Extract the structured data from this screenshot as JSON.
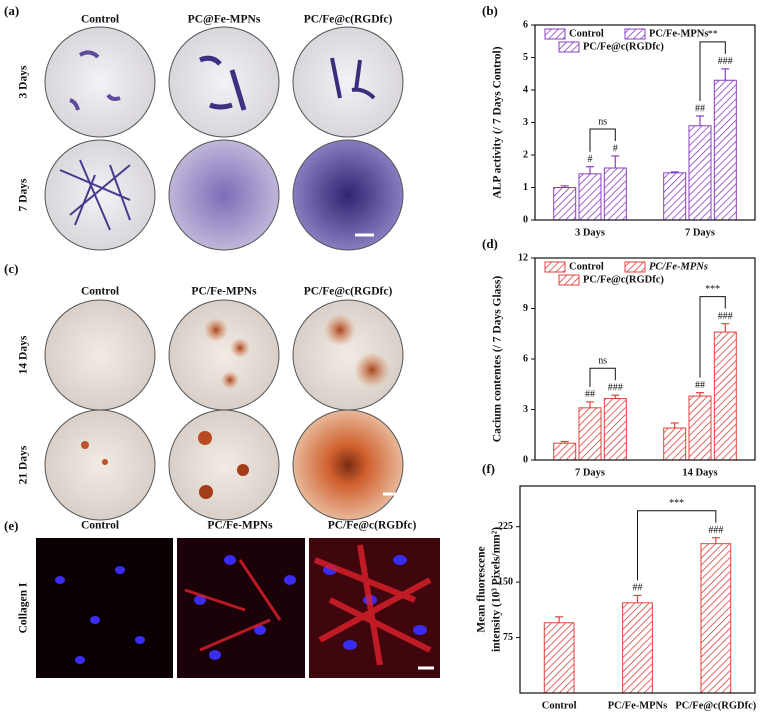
{
  "panels": {
    "a": {
      "label": "(a)",
      "columns": [
        "Control",
        "PC@Fe-MPNs",
        "PC/Fe@c(RGDfc)"
      ],
      "rows": [
        "3 Days",
        "7 Days"
      ]
    },
    "c": {
      "label": "(c)",
      "columns": [
        "Control",
        "PC/Fe-MPNs",
        "PC/Fe@c(RGDfc)"
      ],
      "rows": [
        "14 Days",
        "21 Days"
      ]
    },
    "e": {
      "label": "(e)",
      "columns": [
        "Control",
        "PC/Fe-MPNs",
        "PC/Fe@c(RGDfc)"
      ],
      "rows": [
        "Collagen I"
      ]
    }
  },
  "chart_data": [
    {
      "type": "bar",
      "panel_label": "(b)",
      "ylabel": "ALP activity (/ 7 Days Control)",
      "categories": [
        "3 Days",
        "7 Days"
      ],
      "color": "#8a3fc4",
      "legend": "top-left",
      "series": [
        {
          "name": "Control",
          "values": [
            1.0,
            1.45
          ],
          "errors": [
            0.05,
            0.03
          ]
        },
        {
          "name": "PC/Fe-MPNs",
          "values": [
            1.42,
            2.9
          ],
          "errors": [
            0.22,
            0.3
          ],
          "significance": [
            "#",
            "##"
          ]
        },
        {
          "name": "PC/Fe@c(RGDfc)",
          "values": [
            1.6,
            4.3
          ],
          "errors": [
            0.37,
            0.35
          ],
          "significance": [
            "#",
            "###"
          ]
        }
      ],
      "brackets": [
        {
          "label": "ns",
          "category": "3 Days",
          "between": [
            "PC/Fe-MPNs",
            "PC/Fe@c(RGDfc)"
          ]
        },
        {
          "label": "**",
          "category": "7 Days",
          "between": [
            "PC/Fe-MPNs",
            "PC/Fe@c(RGDfc)"
          ]
        }
      ],
      "ylim": [
        0,
        6
      ],
      "yticks": [
        0,
        1,
        2,
        3,
        4,
        5,
        6
      ]
    },
    {
      "type": "bar",
      "panel_label": "(d)",
      "ylabel": "Cacium contentes (/ 7 Days Glass)",
      "categories": [
        "7 Days",
        "14 Days"
      ],
      "color": "#e2423c",
      "legend": "top-left",
      "series": [
        {
          "name": "Control",
          "values": [
            1.0,
            1.9
          ],
          "errors": [
            0.1,
            0.3
          ]
        },
        {
          "name": "PC/Fe-MPNs",
          "values": [
            3.1,
            3.8
          ],
          "errors": [
            0.35,
            0.2
          ],
          "significance": [
            "##",
            "##"
          ],
          "legend_italic": true
        },
        {
          "name": "PC/Fe@c(RGDfc)",
          "values": [
            3.65,
            7.6
          ],
          "errors": [
            0.2,
            0.5
          ],
          "significance": [
            "###",
            "###"
          ]
        }
      ],
      "brackets": [
        {
          "label": "ns",
          "category": "7 Days",
          "between": [
            "PC/Fe-MPNs",
            "PC/Fe@c(RGDfc)"
          ]
        },
        {
          "label": "***",
          "category": "14 Days",
          "between": [
            "PC/Fe-MPNs",
            "PC/Fe@c(RGDfc)"
          ]
        }
      ],
      "ylim": [
        0,
        12
      ],
      "yticks": [
        0,
        3,
        6,
        9,
        12
      ]
    },
    {
      "type": "bar",
      "panel_label": "(f)",
      "ylabel": [
        "Mean fluorescene",
        "intensity (10³ Pixels/mm²)"
      ],
      "categories": [
        "Control",
        "PC/Fe-MPNs",
        "PC/Fe@c(RGDfc)"
      ],
      "color": "#e2423c",
      "values": [
        95,
        122,
        202
      ],
      "errors": [
        8,
        10,
        8
      ],
      "significance": [
        null,
        "##",
        "###"
      ],
      "brackets": [
        {
          "label": "***",
          "between": [
            "PC/Fe-MPNs",
            "PC/Fe@c(RGDfc)"
          ]
        }
      ],
      "ylim": [
        0,
        280
      ],
      "yticks": [
        75,
        150,
        225
      ]
    }
  ]
}
